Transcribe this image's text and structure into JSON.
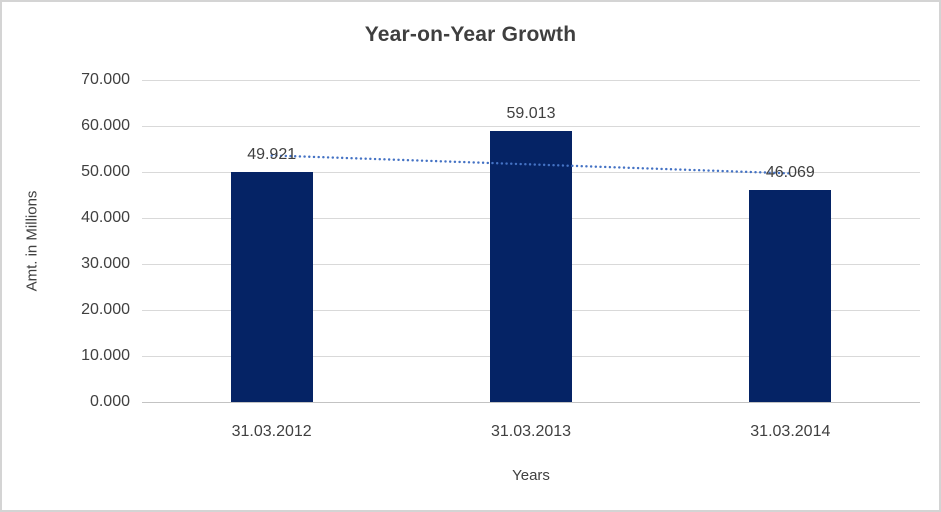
{
  "window": {
    "background_color": "#ffffff",
    "border_color": "#d4d4d4"
  },
  "chart_data": {
    "type": "bar",
    "title": "Year-on-Year Growth",
    "xlabel": "Years",
    "ylabel": "Amt. in Millions",
    "categories": [
      "31.03.2012",
      "31.03.2013",
      "31.03.2014"
    ],
    "values": [
      49.921,
      59.013,
      46.069
    ],
    "value_labels": [
      "49.921",
      "59.013",
      "46.069"
    ],
    "ylim": [
      0,
      70
    ],
    "ytick_step": 10,
    "ytick_labels": [
      "0.000",
      "10.000",
      "20.000",
      "30.000",
      "40.000",
      "50.000",
      "60.000",
      "70.000"
    ],
    "grid": true,
    "legend": "none",
    "bar_color": "#052365",
    "gridline_color": "#d9d9d9",
    "axis_line_color": "#c3c3c3",
    "text_color": "#404040",
    "title_color": "#3f3f3f",
    "trendline": {
      "type": "linear",
      "style": "dotted",
      "color": "#4472c4",
      "start_value": 53.6,
      "end_value": 49.7
    }
  }
}
